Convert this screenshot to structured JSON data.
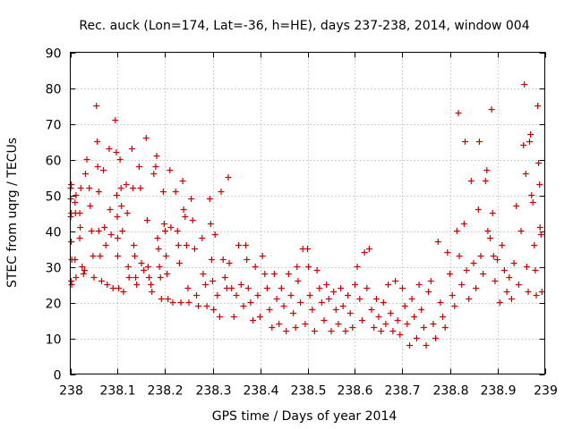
{
  "chart_data": {
    "type": "scatter",
    "title": "Rec. auck (Lon=174, Lat=-36, h=HE), days 237-238, 2014, window 004",
    "xlabel": "GPS time / Days of year 2014",
    "ylabel": "STEC from uqrg / TECUs",
    "xlim": [
      238,
      239
    ],
    "ylim": [
      0,
      90
    ],
    "x_ticks": [
      238,
      238.1,
      238.2,
      238.3,
      238.4,
      238.5,
      238.6,
      238.7,
      238.8,
      238.9,
      239
    ],
    "x_tick_labels": [
      "238",
      "238.1",
      "238.2",
      "238.3",
      "238.4",
      "238.5",
      "238.6",
      "238.7",
      "238.8",
      "238.9",
      "239"
    ],
    "y_ticks": [
      0,
      10,
      20,
      30,
      40,
      50,
      60,
      70,
      80,
      90
    ],
    "y_tick_labels": [
      "0",
      "10",
      "20",
      "30",
      "40",
      "50",
      "60",
      "70",
      "80",
      "90"
    ],
    "grid": true,
    "legend": "none",
    "marker": "plus",
    "color": "#cc0000",
    "series": [
      {
        "name": "",
        "points": [
          [
            238.001,
            49
          ],
          [
            238.001,
            52
          ],
          [
            238.002,
            53
          ],
          [
            238.001,
            44
          ],
          [
            238.002,
            45
          ],
          [
            238.002,
            37
          ],
          [
            238.003,
            32
          ],
          [
            238.002,
            26
          ],
          [
            238.003,
            25
          ],
          [
            238.01,
            48
          ],
          [
            238.012,
            50
          ],
          [
            238.011,
            45
          ],
          [
            238.01,
            32
          ],
          [
            238.012,
            27
          ],
          [
            238.02,
            45
          ],
          [
            238.022,
            52
          ],
          [
            238.021,
            41
          ],
          [
            238.02,
            38
          ],
          [
            238.025,
            30
          ],
          [
            238.028,
            28
          ],
          [
            238.03,
            29
          ],
          [
            238.032,
            56
          ],
          [
            238.035,
            60
          ],
          [
            238.04,
            52
          ],
          [
            238.042,
            47
          ],
          [
            238.045,
            40
          ],
          [
            238.048,
            33
          ],
          [
            238.05,
            27
          ],
          [
            238.055,
            75
          ],
          [
            238.057,
            65
          ],
          [
            238.058,
            58
          ],
          [
            238.06,
            51
          ],
          [
            238.06,
            40
          ],
          [
            238.063,
            33
          ],
          [
            238.066,
            26
          ],
          [
            238.07,
            57
          ],
          [
            238.072,
            41
          ],
          [
            238.075,
            36
          ],
          [
            238.078,
            25
          ],
          [
            238.082,
            63
          ],
          [
            238.084,
            46
          ],
          [
            238.086,
            39
          ],
          [
            238.09,
            24
          ],
          [
            238.095,
            71
          ],
          [
            238.097,
            62
          ],
          [
            238.098,
            50
          ],
          [
            238.099,
            44
          ],
          [
            238.1,
            38
          ],
          [
            238.1,
            33
          ],
          [
            238.102,
            24
          ],
          [
            238.105,
            60
          ],
          [
            238.107,
            52
          ],
          [
            238.108,
            47
          ],
          [
            238.11,
            40
          ],
          [
            238.112,
            23
          ],
          [
            238.118,
            53
          ],
          [
            238.12,
            45
          ],
          [
            238.122,
            30
          ],
          [
            238.124,
            27
          ],
          [
            238.13,
            63
          ],
          [
            238.132,
            52
          ],
          [
            238.134,
            36
          ],
          [
            238.136,
            33
          ],
          [
            238.138,
            27
          ],
          [
            238.14,
            25
          ],
          [
            238.145,
            58
          ],
          [
            238.148,
            52
          ],
          [
            238.15,
            31
          ],
          [
            238.155,
            29
          ],
          [
            238.16,
            66
          ],
          [
            238.162,
            43
          ],
          [
            238.164,
            30
          ],
          [
            238.166,
            27
          ],
          [
            238.17,
            25
          ],
          [
            238.172,
            23
          ],
          [
            238.176,
            56
          ],
          [
            238.18,
            58
          ],
          [
            238.182,
            61
          ],
          [
            238.184,
            38
          ],
          [
            238.186,
            35
          ],
          [
            238.188,
            30
          ],
          [
            238.19,
            27
          ],
          [
            238.192,
            21
          ],
          [
            238.196,
            51
          ],
          [
            238.198,
            42
          ],
          [
            238.2,
            40
          ],
          [
            238.202,
            33
          ],
          [
            238.204,
            28
          ],
          [
            238.206,
            21
          ],
          [
            238.21,
            57
          ],
          [
            238.212,
            41
          ],
          [
            238.216,
            20
          ],
          [
            238.222,
            51
          ],
          [
            238.226,
            40
          ],
          [
            238.228,
            36
          ],
          [
            238.23,
            31
          ],
          [
            238.233,
            20
          ],
          [
            238.237,
            54
          ],
          [
            238.239,
            46
          ],
          [
            238.242,
            44
          ],
          [
            238.245,
            36
          ],
          [
            238.248,
            24
          ],
          [
            238.25,
            20
          ],
          [
            238.255,
            49
          ],
          [
            238.258,
            43
          ],
          [
            238.262,
            35
          ],
          [
            238.266,
            22
          ],
          [
            238.27,
            19
          ],
          [
            238.278,
            38
          ],
          [
            238.28,
            28
          ],
          [
            238.285,
            25
          ],
          [
            238.288,
            19
          ],
          [
            238.294,
            49
          ],
          [
            238.296,
            42
          ],
          [
            238.298,
            32
          ],
          [
            238.3,
            26
          ],
          [
            238.302,
            18
          ],
          [
            238.305,
            39
          ],
          [
            238.31,
            22
          ],
          [
            238.315,
            16
          ],
          [
            238.318,
            51
          ],
          [
            238.322,
            32
          ],
          [
            238.326,
            27
          ],
          [
            238.33,
            24
          ],
          [
            238.333,
            55
          ],
          [
            238.335,
            31
          ],
          [
            238.34,
            24
          ],
          [
            238.345,
            16
          ],
          [
            238.35,
            22
          ],
          [
            238.355,
            36
          ],
          [
            238.36,
            25
          ],
          [
            238.365,
            19
          ],
          [
            238.37,
            36
          ],
          [
            238.372,
            32
          ],
          [
            238.375,
            24
          ],
          [
            238.38,
            20
          ],
          [
            238.385,
            15
          ],
          [
            238.39,
            30
          ],
          [
            238.395,
            22
          ],
          [
            238.4,
            16
          ],
          [
            238.405,
            33
          ],
          [
            238.41,
            28
          ],
          [
            238.415,
            24
          ],
          [
            238.42,
            18
          ],
          [
            238.425,
            13
          ],
          [
            238.43,
            28
          ],
          [
            238.435,
            21
          ],
          [
            238.44,
            14
          ],
          [
            238.445,
            24
          ],
          [
            238.45,
            19
          ],
          [
            238.455,
            12
          ],
          [
            238.46,
            28
          ],
          [
            238.465,
            22
          ],
          [
            238.47,
            17
          ],
          [
            238.475,
            13
          ],
          [
            238.478,
            30
          ],
          [
            238.48,
            26
          ],
          [
            238.485,
            20
          ],
          [
            238.49,
            35
          ],
          [
            238.495,
            14
          ],
          [
            238.5,
            35
          ],
          [
            238.502,
            30
          ],
          [
            238.505,
            22
          ],
          [
            238.51,
            18
          ],
          [
            238.515,
            12
          ],
          [
            238.52,
            29
          ],
          [
            238.525,
            24
          ],
          [
            238.53,
            20
          ],
          [
            238.535,
            15
          ],
          [
            238.54,
            25
          ],
          [
            238.545,
            21
          ],
          [
            238.55,
            12
          ],
          [
            238.555,
            23
          ],
          [
            238.56,
            18
          ],
          [
            238.565,
            14
          ],
          [
            238.57,
            24
          ],
          [
            238.575,
            19
          ],
          [
            238.58,
            12
          ],
          [
            238.585,
            22
          ],
          [
            238.59,
            17
          ],
          [
            238.595,
            13
          ],
          [
            238.6,
            25
          ],
          [
            238.605,
            30
          ],
          [
            238.61,
            21
          ],
          [
            238.615,
            15
          ],
          [
            238.62,
            34
          ],
          [
            238.625,
            24
          ],
          [
            238.63,
            35
          ],
          [
            238.635,
            18
          ],
          [
            238.64,
            13
          ],
          [
            238.645,
            21
          ],
          [
            238.65,
            16
          ],
          [
            238.655,
            12
          ],
          [
            238.66,
            20
          ],
          [
            238.665,
            14
          ],
          [
            238.67,
            25
          ],
          [
            238.675,
            17
          ],
          [
            238.68,
            12
          ],
          [
            238.685,
            26
          ],
          [
            238.69,
            15
          ],
          [
            238.695,
            11
          ],
          [
            238.7,
            24
          ],
          [
            238.705,
            19
          ],
          [
            238.71,
            14
          ],
          [
            238.715,
            8
          ],
          [
            238.72,
            21
          ],
          [
            238.725,
            16
          ],
          [
            238.73,
            10
          ],
          [
            238.735,
            25
          ],
          [
            238.74,
            18
          ],
          [
            238.745,
            13
          ],
          [
            238.75,
            8
          ],
          [
            238.755,
            23
          ],
          [
            238.76,
            26
          ],
          [
            238.765,
            14
          ],
          [
            238.77,
            10
          ],
          [
            238.775,
            37
          ],
          [
            238.78,
            20
          ],
          [
            238.785,
            16
          ],
          [
            238.79,
            13
          ],
          [
            238.795,
            34
          ],
          [
            238.8,
            28
          ],
          [
            238.805,
            22
          ],
          [
            238.81,
            19
          ],
          [
            238.815,
            40
          ],
          [
            238.818,
            73
          ],
          [
            238.82,
            33
          ],
          [
            238.825,
            25
          ],
          [
            238.83,
            42
          ],
          [
            238.832,
            65
          ],
          [
            238.835,
            29
          ],
          [
            238.84,
            21
          ],
          [
            238.845,
            54
          ],
          [
            238.85,
            31
          ],
          [
            238.855,
            24
          ],
          [
            238.86,
            46
          ],
          [
            238.862,
            65
          ],
          [
            238.865,
            33
          ],
          [
            238.87,
            28
          ],
          [
            238.875,
            54
          ],
          [
            238.878,
            57
          ],
          [
            238.88,
            40
          ],
          [
            238.885,
            38
          ],
          [
            238.888,
            74
          ],
          [
            238.89,
            45
          ],
          [
            238.892,
            33
          ],
          [
            238.895,
            26
          ],
          [
            238.9,
            32
          ],
          [
            238.905,
            20
          ],
          [
            238.91,
            36
          ],
          [
            238.915,
            29
          ],
          [
            238.92,
            23
          ],
          [
            238.925,
            27
          ],
          [
            238.93,
            21
          ],
          [
            238.935,
            31
          ],
          [
            238.94,
            47
          ],
          [
            238.945,
            25
          ],
          [
            238.95,
            40
          ],
          [
            238.955,
            64
          ],
          [
            238.957,
            81
          ],
          [
            238.96,
            56
          ],
          [
            238.962,
            30
          ],
          [
            238.965,
            23
          ],
          [
            238.968,
            65
          ],
          [
            238.97,
            67
          ],
          [
            238.972,
            50
          ],
          [
            238.975,
            48
          ],
          [
            238.978,
            36
          ],
          [
            238.98,
            29
          ],
          [
            238.982,
            22
          ],
          [
            238.985,
            75
          ],
          [
            238.987,
            59
          ],
          [
            238.989,
            53
          ],
          [
            238.99,
            41
          ],
          [
            238.992,
            39
          ],
          [
            238.994,
            23
          ]
        ]
      }
    ]
  }
}
